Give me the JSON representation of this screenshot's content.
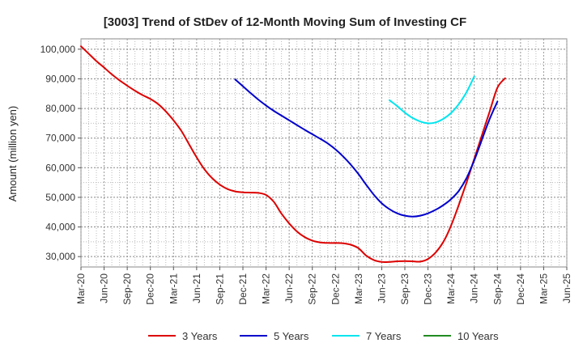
{
  "chart_data": {
    "type": "line",
    "title": "[3003]  Trend of StDev of 12-Month Moving Sum of Investing CF",
    "xlabel": "",
    "ylabel": "Amount (million yen)",
    "ylim": [
      26500,
      103500
    ],
    "yticks": [
      30000,
      40000,
      50000,
      60000,
      70000,
      80000,
      90000,
      100000
    ],
    "ytick_labels": [
      "30,000",
      "40,000",
      "50,000",
      "60,000",
      "70,000",
      "80,000",
      "90,000",
      "100,000"
    ],
    "xtick_labels": [
      "Mar-20",
      "Jun-20",
      "Sep-20",
      "Dec-20",
      "Mar-21",
      "Jun-21",
      "Sep-21",
      "Dec-21",
      "Mar-22",
      "Jun-22",
      "Sep-22",
      "Dec-22",
      "Mar-23",
      "Jun-23",
      "Sep-23",
      "Dec-23",
      "Mar-24",
      "Jun-24",
      "Sep-24",
      "Dec-24",
      "Mar-25",
      "Jun-25"
    ],
    "x_unit": "month",
    "grid": true,
    "legend_position": "bottom",
    "series": [
      {
        "name": "3 Years",
        "color": "#dd0000",
        "points": [
          [
            "2020-03",
            101000
          ],
          [
            "2020-04",
            98500
          ],
          [
            "2020-05",
            96000
          ],
          [
            "2020-06",
            93800
          ],
          [
            "2020-07",
            91500
          ],
          [
            "2020-08",
            89500
          ],
          [
            "2020-09",
            87700
          ],
          [
            "2020-10",
            86000
          ],
          [
            "2020-11",
            84500
          ],
          [
            "2020-12",
            83200
          ],
          [
            "2021-01",
            81500
          ],
          [
            "2021-02",
            79000
          ],
          [
            "2021-03",
            76000
          ],
          [
            "2021-04",
            72500
          ],
          [
            "2021-05",
            68000
          ],
          [
            "2021-06",
            63500
          ],
          [
            "2021-07",
            59500
          ],
          [
            "2021-08",
            56500
          ],
          [
            "2021-09",
            54300
          ],
          [
            "2021-10",
            52800
          ],
          [
            "2021-11",
            52000
          ],
          [
            "2021-12",
            51700
          ],
          [
            "2022-01",
            51600
          ],
          [
            "2022-02",
            51500
          ],
          [
            "2022-03",
            50800
          ],
          [
            "2022-04",
            48500
          ],
          [
            "2022-05",
            44500
          ],
          [
            "2022-06",
            41200
          ],
          [
            "2022-07",
            38500
          ],
          [
            "2022-08",
            36600
          ],
          [
            "2022-09",
            35400
          ],
          [
            "2022-10",
            34800
          ],
          [
            "2022-11",
            34600
          ],
          [
            "2022-12",
            34600
          ],
          [
            "2023-01",
            34500
          ],
          [
            "2023-02",
            34000
          ],
          [
            "2023-03",
            32800
          ],
          [
            "2023-04",
            30300
          ],
          [
            "2023-05",
            28800
          ],
          [
            "2023-06",
            28200
          ],
          [
            "2023-07",
            28200
          ],
          [
            "2023-08",
            28400
          ],
          [
            "2023-09",
            28500
          ],
          [
            "2023-10",
            28400
          ],
          [
            "2023-11",
            28300
          ],
          [
            "2023-12",
            29200
          ],
          [
            "2024-01",
            31400
          ],
          [
            "2024-02",
            35000
          ],
          [
            "2024-03",
            40500
          ],
          [
            "2024-04",
            47500
          ],
          [
            "2024-05",
            55000
          ],
          [
            "2024-06",
            63000
          ],
          [
            "2024-07",
            71000
          ],
          [
            "2024-08",
            79000
          ],
          [
            "2024-09",
            87000
          ],
          [
            "2024-10",
            90200
          ]
        ]
      },
      {
        "name": "5 Years",
        "color": "#0000cc",
        "points": [
          [
            "2021-11",
            89800
          ],
          [
            "2021-12",
            87500
          ],
          [
            "2022-01",
            85200
          ],
          [
            "2022-02",
            83000
          ],
          [
            "2022-03",
            81000
          ],
          [
            "2022-04",
            79200
          ],
          [
            "2022-05",
            77600
          ],
          [
            "2022-06",
            76000
          ],
          [
            "2022-07",
            74400
          ],
          [
            "2022-08",
            72800
          ],
          [
            "2022-09",
            71300
          ],
          [
            "2022-10",
            69800
          ],
          [
            "2022-11",
            68200
          ],
          [
            "2022-12",
            66200
          ],
          [
            "2023-01",
            63800
          ],
          [
            "2023-02",
            61000
          ],
          [
            "2023-03",
            57800
          ],
          [
            "2023-04",
            54200
          ],
          [
            "2023-05",
            50800
          ],
          [
            "2023-06",
            48000
          ],
          [
            "2023-07",
            46000
          ],
          [
            "2023-08",
            44600
          ],
          [
            "2023-09",
            43800
          ],
          [
            "2023-10",
            43500
          ],
          [
            "2023-11",
            43800
          ],
          [
            "2023-12",
            44600
          ],
          [
            "2024-01",
            45800
          ],
          [
            "2024-02",
            47400
          ],
          [
            "2024-03",
            49400
          ],
          [
            "2024-04",
            52200
          ],
          [
            "2024-05",
            56500
          ],
          [
            "2024-06",
            62500
          ],
          [
            "2024-07",
            69500
          ],
          [
            "2024-08",
            76500
          ],
          [
            "2024-09",
            82300
          ]
        ]
      },
      {
        "name": "7 Years",
        "color": "#00e5ee",
        "points": [
          [
            "2023-07",
            82800
          ],
          [
            "2023-08",
            80800
          ],
          [
            "2023-09",
            78600
          ],
          [
            "2023-10",
            76800
          ],
          [
            "2023-11",
            75600
          ],
          [
            "2023-12",
            75000
          ],
          [
            "2024-01",
            75300
          ],
          [
            "2024-02",
            76500
          ],
          [
            "2024-03",
            78500
          ],
          [
            "2024-04",
            81500
          ],
          [
            "2024-05",
            85500
          ],
          [
            "2024-06",
            90800
          ]
        ]
      },
      {
        "name": "10 Years",
        "color": "#228b22",
        "points": []
      }
    ]
  }
}
